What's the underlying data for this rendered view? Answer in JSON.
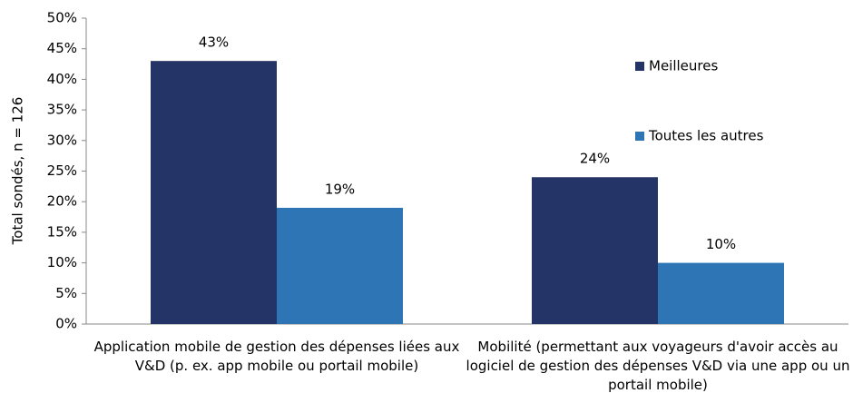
{
  "chart_data": {
    "type": "bar",
    "y_label": "Total sondés, n = 126",
    "categories": [
      "Application mobile de gestion des dépenses liées aux V&D (p. ex. app mobile ou portail mobile)",
      "Mobilité (permettant aux voyageurs d'avoir accès au logiciel de gestion des dépenses V&D via une app ou un portail mobile)"
    ],
    "series": [
      {
        "name": "Meilleures",
        "color": "#253466",
        "values": [
          43,
          24
        ],
        "value_labels": [
          "43%",
          "24%"
        ]
      },
      {
        "name": "Toutes les autres",
        "color": "#2e75b6",
        "values": [
          19,
          10
        ],
        "value_labels": [
          "19%",
          "10%"
        ]
      }
    ],
    "ylim": [
      0,
      50
    ],
    "yticks": [
      {
        "value": 0,
        "label": "0%"
      },
      {
        "value": 5,
        "label": "5%"
      },
      {
        "value": 10,
        "label": "10%"
      },
      {
        "value": 15,
        "label": "15%"
      },
      {
        "value": 20,
        "label": "20%"
      },
      {
        "value": 25,
        "label": "25%"
      },
      {
        "value": 30,
        "label": "30%"
      },
      {
        "value": 35,
        "label": "35%"
      },
      {
        "value": 40,
        "label": "40%"
      },
      {
        "value": 45,
        "label": "45%"
      },
      {
        "value": 50,
        "label": "50%"
      }
    ],
    "grid": false,
    "legend": "right"
  }
}
